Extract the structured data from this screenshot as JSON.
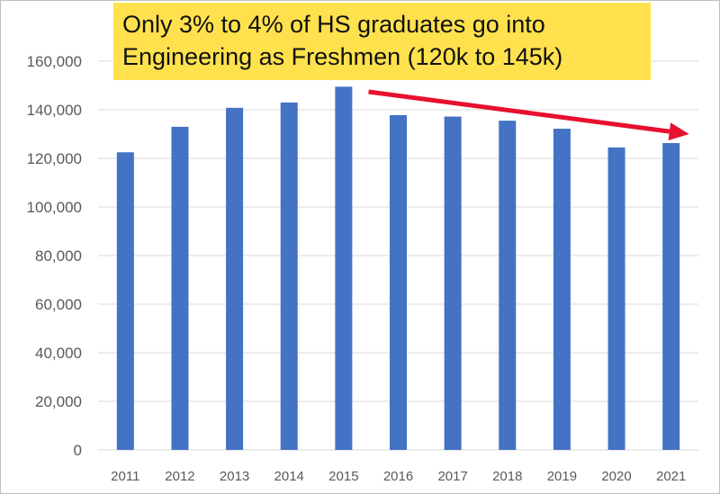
{
  "callout": {
    "line1": "Only 3% to 4% of HS graduates go into",
    "line2": "Engineering as Freshmen (120k to 145k)"
  },
  "colors": {
    "bar": "#4472c4",
    "arrow": "#e8102e",
    "callout_bg": "#ffe14d",
    "gridline": "#d9d9d9"
  },
  "chart_data": {
    "type": "bar",
    "categories": [
      "2011",
      "2012",
      "2013",
      "2014",
      "2015",
      "2016",
      "2017",
      "2018",
      "2019",
      "2020",
      "2021"
    ],
    "values": [
      122500,
      133000,
      140800,
      143000,
      149500,
      137800,
      137200,
      135500,
      132200,
      124500,
      126300
    ],
    "title": "",
    "xlabel": "",
    "ylabel": "",
    "ylim": [
      0,
      160000
    ],
    "y_ticks": [
      "0",
      "20,000",
      "40,000",
      "60,000",
      "80,000",
      "100,000",
      "120,000",
      "140,000",
      "160,000"
    ],
    "grid": true,
    "legend": "none",
    "annotations": [
      {
        "type": "arrow",
        "label": "downward trend",
        "from_category": "2016",
        "to_category": "2021"
      }
    ]
  }
}
